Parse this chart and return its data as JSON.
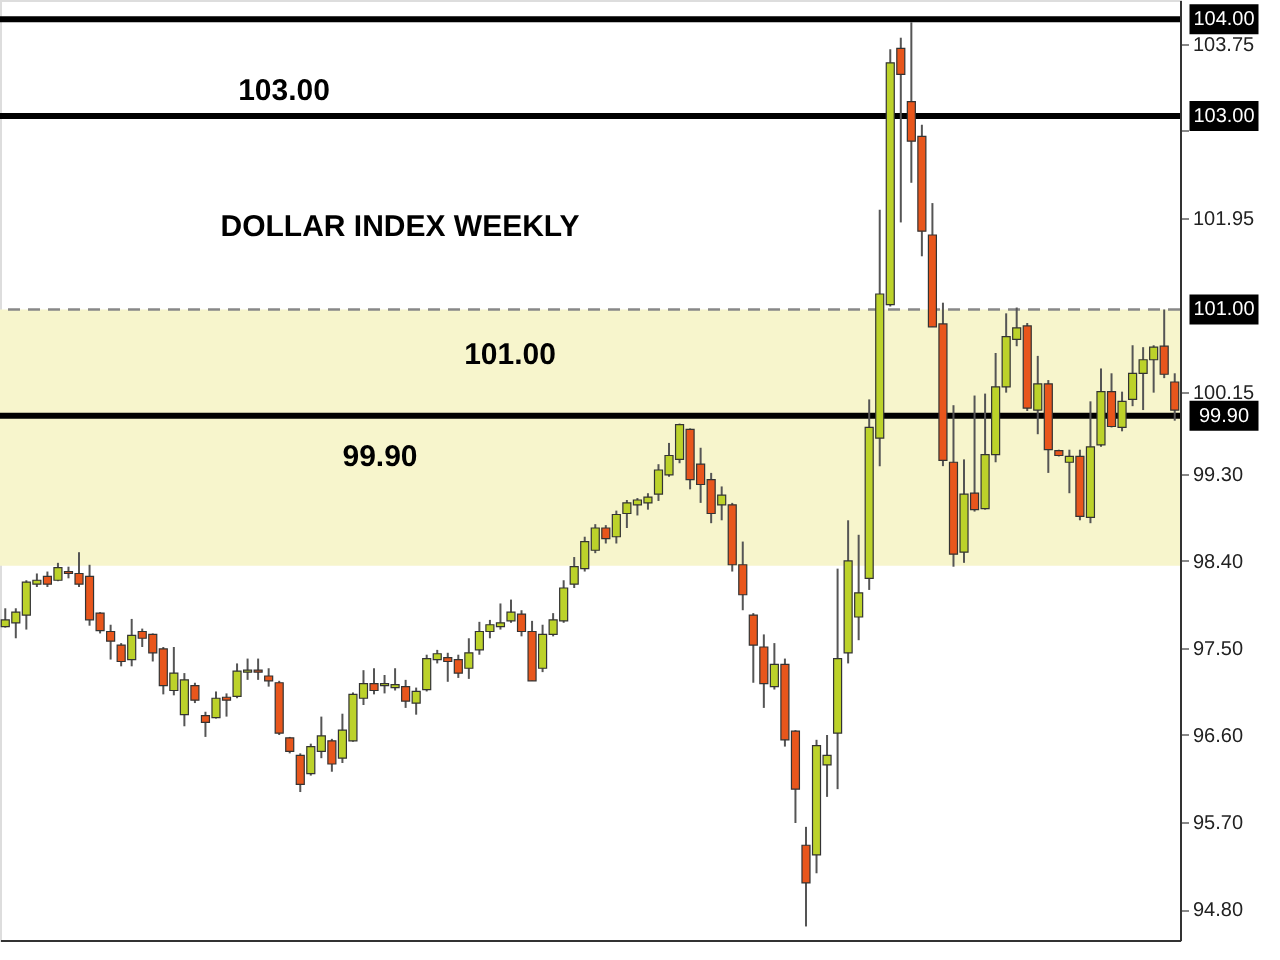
{
  "chart_data": {
    "type": "candlestick",
    "title": "DOLLAR INDEX WEEKLY",
    "categories": [
      null,
      null,
      null,
      null,
      null,
      null,
      null,
      null,
      null,
      null,
      null,
      null,
      null,
      null,
      null,
      null,
      null,
      null,
      null,
      null,
      null,
      null,
      null,
      null,
      null,
      null,
      null,
      null,
      null,
      null,
      null,
      null,
      null,
      null,
      null,
      null,
      null,
      null,
      null,
      null,
      null,
      null,
      null,
      null,
      null,
      null,
      null,
      null,
      null,
      null,
      null,
      null,
      null,
      null,
      null,
      null,
      null,
      null,
      null,
      null,
      null,
      null,
      null,
      null,
      null,
      null,
      null,
      null,
      null,
      null,
      null,
      null,
      null,
      null,
      null,
      null,
      null,
      null,
      null,
      null,
      null,
      null,
      null,
      null,
      null,
      null,
      null,
      null,
      null,
      null,
      null,
      null,
      null,
      null,
      null,
      null,
      null,
      null,
      null,
      null,
      null,
      null,
      null,
      null,
      null,
      null,
      null,
      null,
      null,
      null,
      null,
      null
    ],
    "ohlc": [
      [
        97.72,
        97.91,
        97.71,
        97.79
      ],
      [
        97.76,
        97.91,
        97.6,
        97.87
      ],
      [
        97.84,
        98.2,
        97.69,
        98.18
      ],
      [
        98.16,
        98.27,
        98.13,
        98.2
      ],
      [
        98.24,
        98.29,
        98.13,
        98.16
      ],
      [
        98.2,
        98.38,
        98.19,
        98.33
      ],
      [
        98.29,
        98.34,
        98.22,
        98.27
      ],
      [
        98.27,
        98.49,
        98.13,
        98.16
      ],
      [
        98.24,
        98.36,
        97.73,
        97.79
      ],
      [
        97.86,
        97.87,
        97.65,
        97.68
      ],
      [
        97.67,
        97.74,
        97.38,
        97.57
      ],
      [
        97.53,
        97.55,
        97.31,
        97.36
      ],
      [
        97.38,
        97.8,
        97.31,
        97.63
      ],
      [
        97.67,
        97.7,
        97.51,
        97.6
      ],
      [
        97.64,
        97.65,
        97.36,
        97.45
      ],
      [
        97.49,
        97.51,
        97.02,
        97.11
      ],
      [
        97.06,
        97.51,
        97.01,
        97.24
      ],
      [
        96.81,
        97.24,
        96.69,
        97.17
      ],
      [
        97.11,
        97.14,
        96.93,
        96.96
      ],
      [
        96.8,
        96.84,
        96.58,
        96.73
      ],
      [
        96.78,
        97.05,
        96.77,
        96.98
      ],
      [
        96.99,
        97.03,
        96.79,
        96.96
      ],
      [
        97.0,
        97.34,
        96.98,
        97.26
      ],
      [
        97.25,
        97.39,
        97.17,
        97.27
      ],
      [
        97.27,
        97.39,
        97.17,
        97.25
      ],
      [
        97.21,
        97.29,
        97.1,
        97.16
      ],
      [
        97.14,
        97.16,
        96.6,
        96.62
      ],
      [
        96.57,
        96.58,
        96.41,
        96.43
      ],
      [
        96.39,
        96.41,
        96.01,
        96.09
      ],
      [
        96.2,
        96.51,
        96.18,
        96.48
      ],
      [
        96.43,
        96.79,
        96.36,
        96.59
      ],
      [
        96.54,
        96.56,
        96.22,
        96.3
      ],
      [
        96.36,
        96.82,
        96.31,
        96.65
      ],
      [
        96.54,
        97.04,
        96.53,
        97.02
      ],
      [
        96.98,
        97.27,
        96.91,
        97.13
      ],
      [
        97.13,
        97.29,
        97.02,
        97.06
      ],
      [
        97.11,
        97.22,
        97.03,
        97.13
      ],
      [
        97.09,
        97.29,
        97.06,
        97.12
      ],
      [
        97.1,
        97.17,
        96.88,
        96.95
      ],
      [
        96.93,
        97.09,
        96.81,
        97.05
      ],
      [
        97.07,
        97.43,
        97.05,
        97.39
      ],
      [
        97.38,
        97.48,
        97.34,
        97.44
      ],
      [
        97.4,
        97.45,
        97.15,
        97.36
      ],
      [
        97.38,
        97.43,
        97.19,
        97.24
      ],
      [
        97.29,
        97.6,
        97.18,
        97.45
      ],
      [
        97.48,
        97.77,
        97.43,
        97.67
      ],
      [
        97.67,
        97.79,
        97.6,
        97.74
      ],
      [
        97.72,
        97.96,
        97.69,
        97.76
      ],
      [
        97.78,
        98.0,
        97.76,
        97.87
      ],
      [
        97.85,
        97.89,
        97.62,
        97.67
      ],
      [
        97.67,
        97.78,
        97.16,
        97.16
      ],
      [
        97.29,
        97.74,
        97.25,
        97.64
      ],
      [
        97.64,
        97.86,
        97.62,
        97.79
      ],
      [
        97.78,
        98.2,
        97.76,
        98.12
      ],
      [
        98.16,
        98.44,
        98.12,
        98.34
      ],
      [
        98.32,
        98.65,
        98.29,
        98.6
      ],
      [
        98.51,
        98.78,
        98.48,
        98.74
      ],
      [
        98.74,
        98.77,
        98.58,
        98.63
      ],
      [
        98.65,
        98.92,
        98.58,
        98.88
      ],
      [
        98.89,
        99.03,
        98.74,
        99.0
      ],
      [
        98.98,
        99.05,
        98.87,
        99.03
      ],
      [
        99.0,
        99.1,
        98.93,
        99.06
      ],
      [
        99.09,
        99.4,
        99.02,
        99.34
      ],
      [
        99.29,
        99.62,
        99.27,
        99.49
      ],
      [
        99.45,
        99.82,
        99.41,
        99.81
      ],
      [
        99.76,
        99.77,
        99.14,
        99.24
      ],
      [
        99.4,
        99.57,
        99.0,
        99.19
      ],
      [
        99.24,
        99.31,
        98.79,
        98.89
      ],
      [
        98.98,
        99.17,
        98.82,
        99.08
      ],
      [
        98.98,
        99.0,
        98.29,
        98.36
      ],
      [
        98.36,
        98.6,
        97.89,
        98.05
      ],
      [
        97.84,
        97.86,
        97.14,
        97.53
      ],
      [
        97.51,
        97.64,
        96.88,
        97.13
      ],
      [
        97.1,
        97.55,
        97.07,
        97.33
      ],
      [
        97.33,
        97.39,
        96.48,
        96.55
      ],
      [
        96.64,
        96.65,
        95.69,
        96.04
      ],
      [
        95.46,
        95.65,
        94.62,
        95.07
      ],
      [
        95.36,
        96.55,
        95.17,
        96.49
      ],
      [
        96.29,
        96.6,
        95.96,
        96.39
      ],
      [
        96.62,
        98.32,
        96.04,
        97.39
      ],
      [
        97.45,
        98.82,
        97.34,
        98.4
      ],
      [
        97.82,
        98.67,
        97.58,
        98.07
      ],
      [
        98.22,
        100.07,
        98.1,
        99.78
      ],
      [
        99.67,
        102.03,
        99.38,
        101.16
      ],
      [
        101.05,
        103.69,
        101.03,
        103.55
      ],
      [
        103.7,
        103.81,
        101.9,
        103.43
      ],
      [
        103.15,
        103.97,
        102.31,
        102.74
      ],
      [
        102.79,
        102.91,
        101.55,
        101.81
      ],
      [
        101.77,
        102.1,
        100.82,
        100.82
      ],
      [
        100.85,
        101.07,
        99.38,
        99.44
      ],
      [
        99.42,
        100.01,
        98.34,
        98.47
      ],
      [
        98.49,
        99.45,
        98.38,
        99.09
      ],
      [
        99.1,
        100.11,
        98.91,
        98.93
      ],
      [
        98.94,
        100.13,
        98.93,
        99.5
      ],
      [
        99.5,
        100.55,
        99.42,
        100.2
      ],
      [
        100.2,
        100.96,
        100.14,
        100.72
      ],
      [
        100.69,
        101.02,
        100.62,
        100.81
      ],
      [
        100.83,
        100.86,
        99.95,
        99.98
      ],
      [
        99.96,
        100.52,
        99.71,
        100.23
      ],
      [
        100.23,
        100.27,
        99.31,
        99.55
      ],
      [
        99.54,
        99.55,
        99.48,
        99.49
      ],
      [
        99.42,
        99.55,
        99.1,
        99.48
      ],
      [
        99.48,
        99.55,
        98.82,
        98.86
      ],
      [
        98.85,
        100.05,
        98.79,
        99.58
      ],
      [
        99.6,
        100.39,
        99.58,
        100.15
      ],
      [
        100.15,
        100.34,
        99.78,
        99.79
      ],
      [
        99.78,
        100.15,
        99.74,
        100.05
      ],
      [
        100.07,
        100.63,
        100.0,
        100.34
      ],
      [
        100.34,
        100.61,
        99.96,
        100.48
      ],
      [
        100.48,
        100.63,
        100.14,
        100.61
      ],
      [
        100.62,
        101.0,
        100.29,
        100.33
      ],
      [
        100.25,
        100.34,
        99.85,
        99.96
      ]
    ],
    "colors": [
      "#bcd22a",
      "#bcd22a",
      "#bcd22a",
      "#bcd22a",
      "#e8561c",
      "#bcd22a",
      "#e8561c",
      "#e8561c",
      "#e8561c",
      "#e8561c",
      "#e8561c",
      "#e8561c",
      "#bcd22a",
      "#e8561c",
      "#e8561c",
      "#e8561c",
      "#bcd22a",
      "#bcd22a",
      "#e8561c",
      "#e8561c",
      "#bcd22a",
      "#e8561c",
      "#bcd22a",
      "#bcd22a",
      "#e8561c",
      "#e8561c",
      "#e8561c",
      "#e8561c",
      "#e8561c",
      "#bcd22a",
      "#bcd22a",
      "#e8561c",
      "#bcd22a",
      "#bcd22a",
      "#bcd22a",
      "#e8561c",
      "#bcd22a",
      "#bcd22a",
      "#e8561c",
      "#bcd22a",
      "#bcd22a",
      "#bcd22a",
      "#e8561c",
      "#e8561c",
      "#bcd22a",
      "#bcd22a",
      "#bcd22a",
      "#bcd22a",
      "#bcd22a",
      "#e8561c",
      "#e8561c",
      "#bcd22a",
      "#bcd22a",
      "#bcd22a",
      "#bcd22a",
      "#bcd22a",
      "#bcd22a",
      "#e8561c",
      "#bcd22a",
      "#bcd22a",
      "#bcd22a",
      "#bcd22a",
      "#bcd22a",
      "#bcd22a",
      "#bcd22a",
      "#e8561c",
      "#e8561c",
      "#e8561c",
      "#bcd22a",
      "#e8561c",
      "#e8561c",
      "#e8561c",
      "#e8561c",
      "#bcd22a",
      "#e8561c",
      "#e8561c",
      "#e8561c",
      "#bcd22a",
      "#bcd22a",
      "#bcd22a",
      "#bcd22a",
      "#bcd22a",
      "#bcd22a",
      "#bcd22a",
      "#bcd22a",
      "#e8561c",
      "#e8561c",
      "#e8561c",
      "#e8561c",
      "#e8561c",
      "#e8561c",
      "#bcd22a",
      "#e8561c",
      "#bcd22a",
      "#bcd22a",
      "#bcd22a",
      "#bcd22a",
      "#e8561c",
      "#bcd22a",
      "#e8561c",
      "#e8561c",
      "#bcd22a",
      "#e8561c",
      "#bcd22a",
      "#bcd22a",
      "#e8561c",
      "#bcd22a",
      "#bcd22a",
      "#bcd22a",
      "#bcd22a",
      "#e8561c",
      "#e8561c"
    ],
    "ylim": [
      94.48,
      104.2
    ],
    "yticks": [
      {
        "value": 94.8,
        "label": "94.80"
      },
      {
        "value": 95.7,
        "label": "95.70"
      },
      {
        "value": 96.6,
        "label": "96.60"
      },
      {
        "value": 97.5,
        "label": "97.50"
      },
      {
        "value": 98.4,
        "label": "98.40"
      },
      {
        "value": 99.3,
        "label": "99.30"
      },
      100.15,
      101.95,
      {
        "value": 102.85,
        "label": null
      },
      103.75
    ],
    "tick_labels": "y",
    "ref_lines": [
      {
        "axis": "y",
        "value": 104.0,
        "label": "104.00",
        "color": "#000000",
        "line_style": "solid"
      },
      {
        "axis": "y",
        "value": 103.0,
        "label": "103.00",
        "color": "#000000",
        "line_style": "solid"
      },
      {
        "axis": "y",
        "value": 101.0,
        "label": "101.00",
        "color": "#888888",
        "line_style": "dashed"
      },
      {
        "axis": "y",
        "value": 99.9,
        "label": "99.90",
        "color": "#000000",
        "line_style": "solid"
      }
    ],
    "bands": [
      {
        "axis": "y",
        "from": 98.35,
        "to": 101.0,
        "color": "#f7f5cc"
      }
    ],
    "annotations": [
      "103.00",
      "101.00",
      "99.90"
    ]
  }
}
